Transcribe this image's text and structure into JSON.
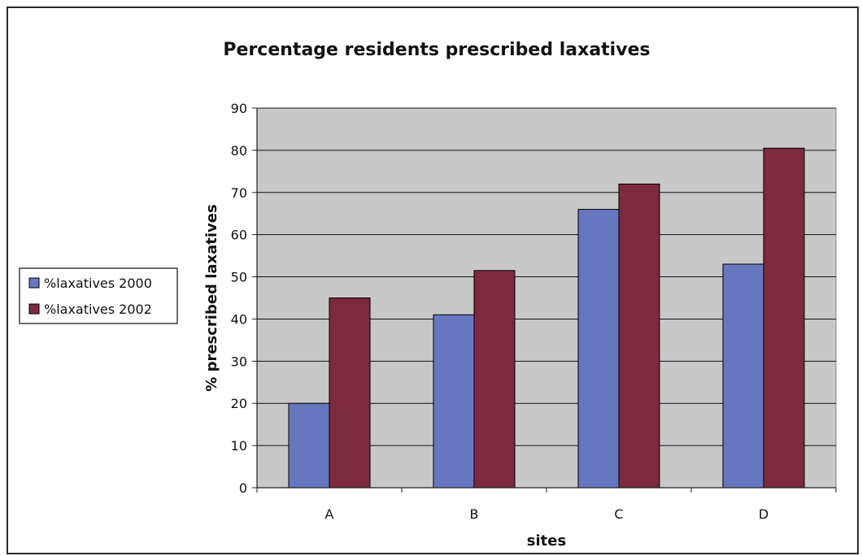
{
  "chart_data": {
    "type": "bar",
    "title": "Percentage residents prescribed laxatives",
    "xlabel": "sites",
    "ylabel": "% prescribed laxatives",
    "categories": [
      "A",
      "B",
      "C",
      "D"
    ],
    "series": [
      {
        "name": "%laxatives 2000",
        "color": "#6676bf",
        "values": [
          20,
          41,
          66,
          53
        ]
      },
      {
        "name": "%laxatives 2002",
        "color": "#7d2a3e",
        "values": [
          45,
          51.5,
          72,
          80.5
        ]
      }
    ],
    "ylim": [
      0,
      90
    ],
    "yticks": [
      0,
      10,
      20,
      30,
      40,
      50,
      60,
      70,
      80,
      90
    ],
    "grid": true,
    "legend_position": "left",
    "plot_background": "#c8c8c8"
  }
}
